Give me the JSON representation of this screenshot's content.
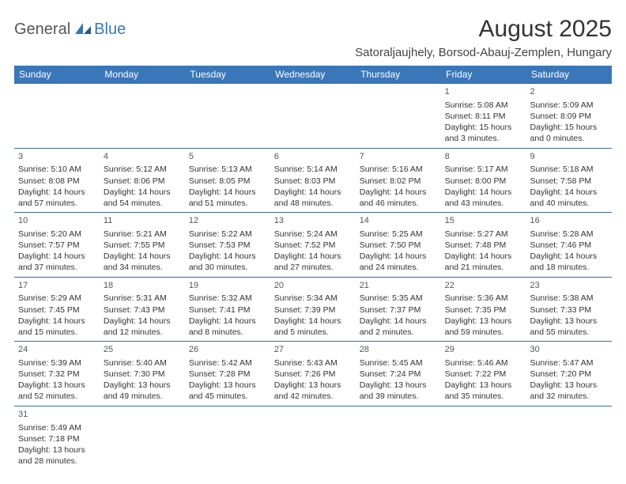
{
  "logo": {
    "general": "General",
    "blue": "Blue"
  },
  "header": {
    "month_title": "August 2025",
    "location": "Satoraljaujhely, Borsod-Abauj-Zemplen, Hungary"
  },
  "days": [
    "Sunday",
    "Monday",
    "Tuesday",
    "Wednesday",
    "Thursday",
    "Friday",
    "Saturday"
  ],
  "colors": {
    "header_bg": "#3a77b8",
    "header_text": "#ffffff",
    "border": "#3a6ea5",
    "text": "#333333"
  },
  "weeks": [
    [
      null,
      null,
      null,
      null,
      null,
      {
        "n": "1",
        "sr": "Sunrise: 5:08 AM",
        "ss": "Sunset: 8:11 PM",
        "dl": "Daylight: 15 hours and 3 minutes."
      },
      {
        "n": "2",
        "sr": "Sunrise: 5:09 AM",
        "ss": "Sunset: 8:09 PM",
        "dl": "Daylight: 15 hours and 0 minutes."
      }
    ],
    [
      {
        "n": "3",
        "sr": "Sunrise: 5:10 AM",
        "ss": "Sunset: 8:08 PM",
        "dl": "Daylight: 14 hours and 57 minutes."
      },
      {
        "n": "4",
        "sr": "Sunrise: 5:12 AM",
        "ss": "Sunset: 8:06 PM",
        "dl": "Daylight: 14 hours and 54 minutes."
      },
      {
        "n": "5",
        "sr": "Sunrise: 5:13 AM",
        "ss": "Sunset: 8:05 PM",
        "dl": "Daylight: 14 hours and 51 minutes."
      },
      {
        "n": "6",
        "sr": "Sunrise: 5:14 AM",
        "ss": "Sunset: 8:03 PM",
        "dl": "Daylight: 14 hours and 48 minutes."
      },
      {
        "n": "7",
        "sr": "Sunrise: 5:16 AM",
        "ss": "Sunset: 8:02 PM",
        "dl": "Daylight: 14 hours and 46 minutes."
      },
      {
        "n": "8",
        "sr": "Sunrise: 5:17 AM",
        "ss": "Sunset: 8:00 PM",
        "dl": "Daylight: 14 hours and 43 minutes."
      },
      {
        "n": "9",
        "sr": "Sunrise: 5:18 AM",
        "ss": "Sunset: 7:58 PM",
        "dl": "Daylight: 14 hours and 40 minutes."
      }
    ],
    [
      {
        "n": "10",
        "sr": "Sunrise: 5:20 AM",
        "ss": "Sunset: 7:57 PM",
        "dl": "Daylight: 14 hours and 37 minutes."
      },
      {
        "n": "11",
        "sr": "Sunrise: 5:21 AM",
        "ss": "Sunset: 7:55 PM",
        "dl": "Daylight: 14 hours and 34 minutes."
      },
      {
        "n": "12",
        "sr": "Sunrise: 5:22 AM",
        "ss": "Sunset: 7:53 PM",
        "dl": "Daylight: 14 hours and 30 minutes."
      },
      {
        "n": "13",
        "sr": "Sunrise: 5:24 AM",
        "ss": "Sunset: 7:52 PM",
        "dl": "Daylight: 14 hours and 27 minutes."
      },
      {
        "n": "14",
        "sr": "Sunrise: 5:25 AM",
        "ss": "Sunset: 7:50 PM",
        "dl": "Daylight: 14 hours and 24 minutes."
      },
      {
        "n": "15",
        "sr": "Sunrise: 5:27 AM",
        "ss": "Sunset: 7:48 PM",
        "dl": "Daylight: 14 hours and 21 minutes."
      },
      {
        "n": "16",
        "sr": "Sunrise: 5:28 AM",
        "ss": "Sunset: 7:46 PM",
        "dl": "Daylight: 14 hours and 18 minutes."
      }
    ],
    [
      {
        "n": "17",
        "sr": "Sunrise: 5:29 AM",
        "ss": "Sunset: 7:45 PM",
        "dl": "Daylight: 14 hours and 15 minutes."
      },
      {
        "n": "18",
        "sr": "Sunrise: 5:31 AM",
        "ss": "Sunset: 7:43 PM",
        "dl": "Daylight: 14 hours and 12 minutes."
      },
      {
        "n": "19",
        "sr": "Sunrise: 5:32 AM",
        "ss": "Sunset: 7:41 PM",
        "dl": "Daylight: 14 hours and 8 minutes."
      },
      {
        "n": "20",
        "sr": "Sunrise: 5:34 AM",
        "ss": "Sunset: 7:39 PM",
        "dl": "Daylight: 14 hours and 5 minutes."
      },
      {
        "n": "21",
        "sr": "Sunrise: 5:35 AM",
        "ss": "Sunset: 7:37 PM",
        "dl": "Daylight: 14 hours and 2 minutes."
      },
      {
        "n": "22",
        "sr": "Sunrise: 5:36 AM",
        "ss": "Sunset: 7:35 PM",
        "dl": "Daylight: 13 hours and 59 minutes."
      },
      {
        "n": "23",
        "sr": "Sunrise: 5:38 AM",
        "ss": "Sunset: 7:33 PM",
        "dl": "Daylight: 13 hours and 55 minutes."
      }
    ],
    [
      {
        "n": "24",
        "sr": "Sunrise: 5:39 AM",
        "ss": "Sunset: 7:32 PM",
        "dl": "Daylight: 13 hours and 52 minutes."
      },
      {
        "n": "25",
        "sr": "Sunrise: 5:40 AM",
        "ss": "Sunset: 7:30 PM",
        "dl": "Daylight: 13 hours and 49 minutes."
      },
      {
        "n": "26",
        "sr": "Sunrise: 5:42 AM",
        "ss": "Sunset: 7:28 PM",
        "dl": "Daylight: 13 hours and 45 minutes."
      },
      {
        "n": "27",
        "sr": "Sunrise: 5:43 AM",
        "ss": "Sunset: 7:26 PM",
        "dl": "Daylight: 13 hours and 42 minutes."
      },
      {
        "n": "28",
        "sr": "Sunrise: 5:45 AM",
        "ss": "Sunset: 7:24 PM",
        "dl": "Daylight: 13 hours and 39 minutes."
      },
      {
        "n": "29",
        "sr": "Sunrise: 5:46 AM",
        "ss": "Sunset: 7:22 PM",
        "dl": "Daylight: 13 hours and 35 minutes."
      },
      {
        "n": "30",
        "sr": "Sunrise: 5:47 AM",
        "ss": "Sunset: 7:20 PM",
        "dl": "Daylight: 13 hours and 32 minutes."
      }
    ],
    [
      {
        "n": "31",
        "sr": "Sunrise: 5:49 AM",
        "ss": "Sunset: 7:18 PM",
        "dl": "Daylight: 13 hours and 28 minutes."
      },
      null,
      null,
      null,
      null,
      null,
      null
    ]
  ]
}
